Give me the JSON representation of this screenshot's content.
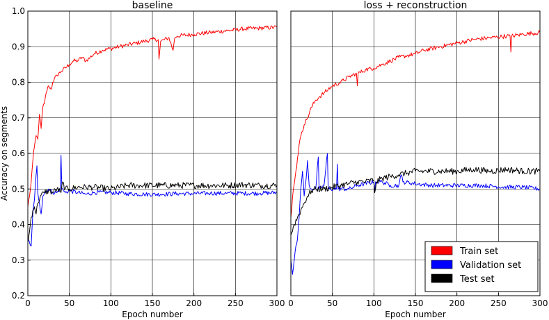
{
  "chart_data": [
    {
      "type": "line",
      "title": "baseline",
      "xlabel": "Epoch number",
      "ylabel": "Accuracy on segments",
      "xlim": [
        0,
        300
      ],
      "ylim": [
        0.2,
        1.0
      ],
      "xticks": [
        "0",
        "50",
        "100",
        "150",
        "200",
        "250",
        "300"
      ],
      "yticks": [
        "0.2",
        "0.3",
        "0.4",
        "0.5",
        "0.6",
        "0.7",
        "0.8",
        "0.9",
        "1.0"
      ],
      "grid": true,
      "series": [
        {
          "name": "Train set",
          "color": "#ff0000",
          "points": [
            [
              0,
              0.45
            ],
            [
              2,
              0.48
            ],
            [
              4,
              0.52
            ],
            [
              6,
              0.58
            ],
            [
              8,
              0.62
            ],
            [
              10,
              0.65
            ],
            [
              12,
              0.64
            ],
            [
              14,
              0.71
            ],
            [
              16,
              0.67
            ],
            [
              18,
              0.73
            ],
            [
              20,
              0.74
            ],
            [
              22,
              0.77
            ],
            [
              25,
              0.79
            ],
            [
              28,
              0.78
            ],
            [
              30,
              0.8
            ],
            [
              35,
              0.82
            ],
            [
              40,
              0.83
            ],
            [
              45,
              0.84
            ],
            [
              50,
              0.85
            ],
            [
              55,
              0.86
            ],
            [
              60,
              0.86
            ],
            [
              65,
              0.87
            ],
            [
              70,
              0.86
            ],
            [
              75,
              0.87
            ],
            [
              80,
              0.88
            ],
            [
              90,
              0.89
            ],
            [
              100,
              0.895
            ],
            [
              110,
              0.9
            ],
            [
              120,
              0.905
            ],
            [
              130,
              0.91
            ],
            [
              140,
              0.915
            ],
            [
              150,
              0.92
            ],
            [
              157,
              0.92
            ],
            [
              158,
              0.865
            ],
            [
              160,
              0.915
            ],
            [
              170,
              0.925
            ],
            [
              175,
              0.89
            ],
            [
              177,
              0.925
            ],
            [
              180,
              0.93
            ],
            [
              200,
              0.935
            ],
            [
              220,
              0.94
            ],
            [
              240,
              0.945
            ],
            [
              260,
              0.95
            ],
            [
              280,
              0.952
            ],
            [
              300,
              0.955
            ]
          ]
        },
        {
          "name": "Validation set",
          "color": "#0000ff",
          "points": [
            [
              0,
              0.36
            ],
            [
              2,
              0.35
            ],
            [
              4,
              0.34
            ],
            [
              6,
              0.43
            ],
            [
              8,
              0.47
            ],
            [
              10,
              0.54
            ],
            [
              11,
              0.565
            ],
            [
              12,
              0.49
            ],
            [
              14,
              0.46
            ],
            [
              16,
              0.43
            ],
            [
              18,
              0.48
            ],
            [
              20,
              0.49
            ],
            [
              25,
              0.5
            ],
            [
              30,
              0.49
            ],
            [
              35,
              0.49
            ],
            [
              39,
              0.5
            ],
            [
              40,
              0.595
            ],
            [
              41,
              0.5
            ],
            [
              45,
              0.49
            ],
            [
              50,
              0.495
            ],
            [
              60,
              0.49
            ],
            [
              70,
              0.485
            ],
            [
              80,
              0.49
            ],
            [
              100,
              0.49
            ],
            [
              120,
              0.487
            ],
            [
              140,
              0.485
            ],
            [
              160,
              0.485
            ],
            [
              180,
              0.487
            ],
            [
              200,
              0.487
            ],
            [
              220,
              0.488
            ],
            [
              240,
              0.488
            ],
            [
              260,
              0.488
            ],
            [
              280,
              0.488
            ],
            [
              300,
              0.49
            ]
          ]
        },
        {
          "name": "Test set",
          "color": "#000000",
          "points": [
            [
              0,
              0.35
            ],
            [
              2,
              0.38
            ],
            [
              4,
              0.42
            ],
            [
              6,
              0.44
            ],
            [
              8,
              0.45
            ],
            [
              10,
              0.43
            ],
            [
              12,
              0.46
            ],
            [
              15,
              0.48
            ],
            [
              20,
              0.49
            ],
            [
              25,
              0.495
            ],
            [
              30,
              0.49
            ],
            [
              35,
              0.5
            ],
            [
              40,
              0.49
            ],
            [
              42,
              0.52
            ],
            [
              45,
              0.5
            ],
            [
              50,
              0.5
            ],
            [
              60,
              0.505
            ],
            [
              70,
              0.505
            ],
            [
              80,
              0.505
            ],
            [
              100,
              0.5
            ],
            [
              120,
              0.51
            ],
            [
              140,
              0.51
            ],
            [
              160,
              0.51
            ],
            [
              180,
              0.51
            ],
            [
              200,
              0.51
            ],
            [
              220,
              0.51
            ],
            [
              240,
              0.51
            ],
            [
              260,
              0.512
            ],
            [
              280,
              0.51
            ],
            [
              300,
              0.51
            ]
          ]
        }
      ]
    },
    {
      "type": "line",
      "title": "loss + reconstruction",
      "xlabel": "Epoch number",
      "ylabel": "",
      "xlim": [
        0,
        300
      ],
      "ylim": [
        0.2,
        1.0
      ],
      "xticks": [
        "0",
        "50",
        "100",
        "150",
        "200",
        "250",
        "300"
      ],
      "yticks": [],
      "grid": true,
      "legend": "lower-right",
      "series": [
        {
          "name": "Train set",
          "color": "#ff0000",
          "points": [
            [
              0,
              0.42
            ],
            [
              3,
              0.5
            ],
            [
              6,
              0.55
            ],
            [
              9,
              0.6
            ],
            [
              11,
              0.64
            ],
            [
              13,
              0.66
            ],
            [
              16,
              0.68
            ],
            [
              20,
              0.7
            ],
            [
              25,
              0.73
            ],
            [
              30,
              0.75
            ],
            [
              35,
              0.76
            ],
            [
              40,
              0.77
            ],
            [
              45,
              0.78
            ],
            [
              50,
              0.79
            ],
            [
              60,
              0.8
            ],
            [
              70,
              0.815
            ],
            [
              79,
              0.825
            ],
            [
              80,
              0.79
            ],
            [
              81,
              0.825
            ],
            [
              90,
              0.835
            ],
            [
              100,
              0.84
            ],
            [
              110,
              0.85
            ],
            [
              120,
              0.86
            ],
            [
              130,
              0.87
            ],
            [
              140,
              0.875
            ],
            [
              150,
              0.88
            ],
            [
              160,
              0.89
            ],
            [
              180,
              0.9
            ],
            [
              200,
              0.91
            ],
            [
              220,
              0.92
            ],
            [
              240,
              0.925
            ],
            [
              260,
              0.93
            ],
            [
              264,
              0.93
            ],
            [
              265,
              0.885
            ],
            [
              266,
              0.93
            ],
            [
              280,
              0.935
            ],
            [
              300,
              0.94
            ]
          ]
        },
        {
          "name": "Validation set",
          "color": "#0000ff",
          "points": [
            [
              0,
              0.3
            ],
            [
              2,
              0.26
            ],
            [
              4,
              0.3
            ],
            [
              6,
              0.34
            ],
            [
              8,
              0.36
            ],
            [
              10,
              0.42
            ],
            [
              12,
              0.5
            ],
            [
              14,
              0.55
            ],
            [
              16,
              0.48
            ],
            [
              18,
              0.52
            ],
            [
              20,
              0.58
            ],
            [
              22,
              0.51
            ],
            [
              25,
              0.5
            ],
            [
              30,
              0.5
            ],
            [
              33,
              0.59
            ],
            [
              34,
              0.5
            ],
            [
              40,
              0.51
            ],
            [
              44,
              0.6
            ],
            [
              45,
              0.5
            ],
            [
              55,
              0.5
            ],
            [
              56,
              0.57
            ],
            [
              57,
              0.5
            ],
            [
              70,
              0.5
            ],
            [
              80,
              0.51
            ],
            [
              100,
              0.52
            ],
            [
              101,
              0.49
            ],
            [
              102,
              0.52
            ],
            [
              110,
              0.52
            ],
            [
              120,
              0.51
            ],
            [
              130,
              0.51
            ],
            [
              133,
              0.54
            ],
            [
              135,
              0.52
            ],
            [
              150,
              0.515
            ],
            [
              170,
              0.51
            ],
            [
              200,
              0.51
            ],
            [
              230,
              0.51
            ],
            [
              260,
              0.505
            ],
            [
              280,
              0.505
            ],
            [
              300,
              0.5
            ]
          ]
        },
        {
          "name": "Test set",
          "color": "#000000",
          "points": [
            [
              0,
              0.37
            ],
            [
              4,
              0.4
            ],
            [
              8,
              0.42
            ],
            [
              12,
              0.44
            ],
            [
              16,
              0.46
            ],
            [
              20,
              0.48
            ],
            [
              25,
              0.495
            ],
            [
              30,
              0.5
            ],
            [
              40,
              0.5
            ],
            [
              50,
              0.505
            ],
            [
              60,
              0.51
            ],
            [
              70,
              0.515
            ],
            [
              80,
              0.52
            ],
            [
              90,
              0.52
            ],
            [
              100,
              0.525
            ],
            [
              101,
              0.49
            ],
            [
              103,
              0.52
            ],
            [
              110,
              0.53
            ],
            [
              120,
              0.535
            ],
            [
              130,
              0.54
            ],
            [
              140,
              0.545
            ],
            [
              150,
              0.55
            ],
            [
              160,
              0.55
            ],
            [
              180,
              0.55
            ],
            [
              200,
              0.55
            ],
            [
              220,
              0.555
            ],
            [
              240,
              0.55
            ],
            [
              260,
              0.555
            ],
            [
              280,
              0.55
            ],
            [
              300,
              0.55
            ]
          ]
        }
      ]
    }
  ]
}
